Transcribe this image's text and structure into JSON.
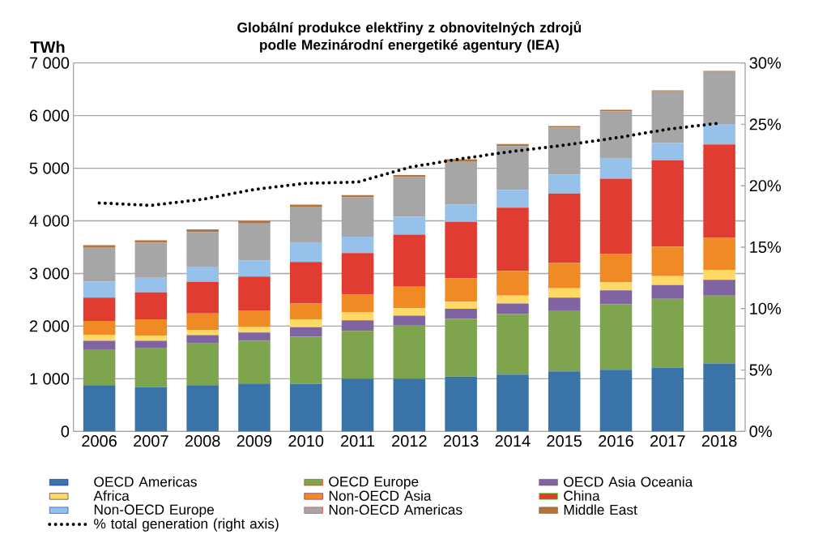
{
  "chart_data": {
    "type": "bar",
    "stacked": true,
    "title": "Globální produkce elektřiny z obnovitelných zdrojů podle Mezinárodní energetiké agentury (IEA)",
    "ylabel": "TWh",
    "categories": [
      "2006",
      "2007",
      "2008",
      "2009",
      "2010",
      "2011",
      "2012",
      "2013",
      "2014",
      "2015",
      "2016",
      "2017",
      "2018"
    ],
    "series": [
      {
        "name": "OECD Americas",
        "color": "#3a73a8",
        "values": [
          880,
          840,
          880,
          910,
          900,
          1000,
          1000,
          1040,
          1080,
          1140,
          1170,
          1210,
          1290
        ]
      },
      {
        "name": "OECD Europe",
        "color": "#7ea44d",
        "values": [
          680,
          740,
          790,
          810,
          900,
          910,
          1020,
          1100,
          1150,
          1160,
          1250,
          1310,
          1290
        ]
      },
      {
        "name": "OECD Asia Oceania",
        "color": "#8064a2",
        "values": [
          160,
          140,
          160,
          160,
          180,
          200,
          180,
          190,
          200,
          240,
          260,
          260,
          300
        ]
      },
      {
        "name": "Africa",
        "color": "#ffd966",
        "values": [
          110,
          100,
          100,
          110,
          150,
          150,
          140,
          130,
          150,
          180,
          150,
          170,
          180
        ]
      },
      {
        "name": "Non-OECD Asia",
        "color": "#f08a24",
        "values": [
          270,
          310,
          310,
          310,
          300,
          340,
          410,
          450,
          470,
          480,
          540,
          560,
          620
        ]
      },
      {
        "name": "China",
        "color": "#e03c31",
        "values": [
          440,
          510,
          600,
          640,
          790,
          790,
          990,
          1070,
          1200,
          1320,
          1430,
          1640,
          1770
        ]
      },
      {
        "name": "Non-OECD Europe",
        "color": "#95c1ea",
        "values": [
          310,
          280,
          290,
          310,
          360,
          310,
          340,
          330,
          340,
          360,
          380,
          330,
          380
        ]
      },
      {
        "name": "Non-OECD Americas",
        "color": "#a6a6a6",
        "values": [
          650,
          670,
          660,
          700,
          690,
          750,
          750,
          820,
          830,
          890,
          900,
          980,
          1000
        ]
      },
      {
        "name": "Middle East",
        "color": "#b5733a",
        "values": [
          40,
          40,
          50,
          50,
          40,
          40,
          40,
          40,
          40,
          30,
          30,
          20,
          20
        ]
      },
      {
        "name": "% total generation   (right axis)",
        "type": "line",
        "axis": "y2",
        "line_style": "dotted",
        "color": "#000000",
        "values": [
          18.6,
          18.4,
          18.9,
          19.7,
          20.2,
          20.3,
          21.5,
          22.2,
          22.8,
          23.3,
          23.9,
          24.6,
          25.1
        ]
      }
    ],
    "ylim": [
      0,
      7000
    ],
    "yticks": [
      {
        "value": 0,
        "label": "0"
      },
      {
        "value": 1000,
        "label": "1 000"
      },
      {
        "value": 2000,
        "label": "2 000"
      },
      {
        "value": 3000,
        "label": "3 000"
      },
      {
        "value": 4000,
        "label": "4 000"
      },
      {
        "value": 5000,
        "label": "5 000"
      },
      {
        "value": 6000,
        "label": "6 000"
      },
      {
        "value": 7000,
        "label": "7 000"
      }
    ],
    "y2lim": [
      0,
      30
    ],
    "y2ticks": [
      {
        "value": 0,
        "label": "0%"
      },
      {
        "value": 5,
        "label": "5%"
      },
      {
        "value": 10,
        "label": "10%"
      },
      {
        "value": 15,
        "label": "15%"
      },
      {
        "value": 20,
        "label": "20%"
      },
      {
        "value": 25,
        "label": "25%"
      },
      {
        "value": 30,
        "label": "30%"
      }
    ],
    "grid": "y",
    "legend": "bottom"
  }
}
